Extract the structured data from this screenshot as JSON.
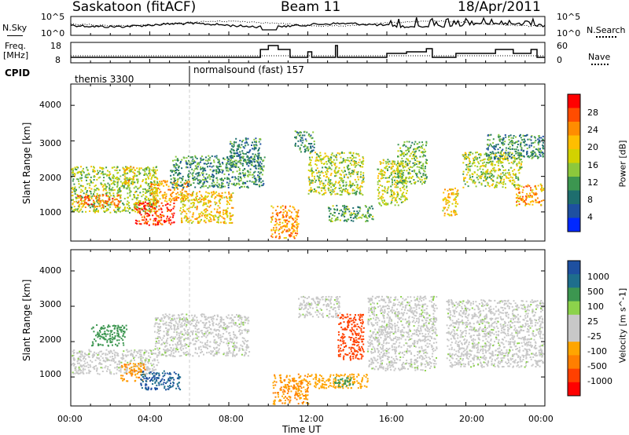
{
  "header": {
    "station": "Saskatoon (fitACF)",
    "beam": "Beam 11",
    "date": "18/Apr/2011"
  },
  "noise_panel": {
    "left_label": "N.Sky",
    "right_label": "N.Search",
    "left_ticks": [
      "10^5",
      "10^0"
    ],
    "right_ticks": [
      "10^5",
      "10^0"
    ]
  },
  "freq_panel": {
    "left_label_line1": "Freq.",
    "left_label_line2": "[MHz]",
    "right_label": "Nave",
    "left_ticks": [
      "18",
      "8"
    ],
    "right_ticks": [
      "60",
      "0"
    ]
  },
  "cpid": {
    "label": "CPID",
    "segments": [
      {
        "name": "themis 3300",
        "start_hour": 0
      },
      {
        "name": "normalsound (fast) 157",
        "start_hour": 6
      }
    ]
  },
  "chart_data": [
    {
      "type": "heatmap",
      "name": "power",
      "ylabel": "Slant Range [km]",
      "yticks": [
        "4000",
        "3000",
        "2000",
        "1000"
      ],
      "ylim": [
        180,
        4600
      ],
      "xlim": [
        0,
        24
      ],
      "colorbar_label": "Power [dB]",
      "colorbar_ticks": [
        "28",
        "24",
        "20",
        "16",
        "12",
        "8",
        "4"
      ],
      "colorbar_colors": [
        "#ff0000",
        "#ff4c00",
        "#ff8c00",
        "#ffbe00",
        "#d2d200",
        "#8cc83c",
        "#3c9650",
        "#1e6e6e",
        "#1e50a0",
        "#0028ff"
      ],
      "blobs": [
        {
          "h0": 0.0,
          "h1": 4.4,
          "r0": 1000,
          "r1": 2300,
          "v": 14
        },
        {
          "h0": 0.3,
          "h1": 2.5,
          "r0": 1150,
          "r1": 1500,
          "v": 23
        },
        {
          "h0": 2.6,
          "h1": 3.2,
          "r0": 1800,
          "r1": 2300,
          "v": 20
        },
        {
          "h0": 3.2,
          "h1": 5.2,
          "r0": 650,
          "r1": 1300,
          "v": 27
        },
        {
          "h0": 4.0,
          "h1": 6.0,
          "r0": 1300,
          "r1": 1900,
          "v": 21
        },
        {
          "h0": 5.0,
          "h1": 9.8,
          "r0": 1700,
          "r1": 2600,
          "v": 10
        },
        {
          "h0": 5.5,
          "h1": 8.2,
          "r0": 700,
          "r1": 1600,
          "v": 19
        },
        {
          "h0": 8.0,
          "h1": 9.6,
          "r0": 2300,
          "r1": 3100,
          "v": 9
        },
        {
          "h0": 10.1,
          "h1": 11.5,
          "r0": 280,
          "r1": 1200,
          "v": 22
        },
        {
          "h0": 11.3,
          "h1": 12.3,
          "r0": 2700,
          "r1": 3300,
          "v": 9
        },
        {
          "h0": 12.0,
          "h1": 14.8,
          "r0": 1500,
          "r1": 2700,
          "v": 15
        },
        {
          "h0": 13.0,
          "h1": 15.3,
          "r0": 750,
          "r1": 1200,
          "v": 11
        },
        {
          "h0": 15.5,
          "h1": 17.0,
          "r0": 1200,
          "r1": 2500,
          "v": 16
        },
        {
          "h0": 16.5,
          "h1": 18.0,
          "r0": 1800,
          "r1": 3000,
          "v": 13
        },
        {
          "h0": 18.8,
          "h1": 19.6,
          "r0": 900,
          "r1": 1700,
          "v": 19
        },
        {
          "h0": 19.8,
          "h1": 22.8,
          "r0": 1700,
          "r1": 2700,
          "v": 15
        },
        {
          "h0": 21.0,
          "h1": 23.9,
          "r0": 2500,
          "r1": 3200,
          "v": 9
        },
        {
          "h0": 22.5,
          "h1": 23.9,
          "r0": 1200,
          "r1": 1800,
          "v": 21
        }
      ]
    },
    {
      "type": "heatmap",
      "name": "velocity",
      "ylabel": "Slant Range [km]",
      "yticks": [
        "4000",
        "3000",
        "2000",
        "1000"
      ],
      "ylim": [
        180,
        4600
      ],
      "xlim": [
        0,
        24
      ],
      "colorbar_label": "Velocity [m s^-1]",
      "colorbar_ticks": [
        "1000",
        "500",
        "100",
        "25",
        "-25",
        "-100",
        "-500",
        "-1000"
      ],
      "colorbar_colors": [
        "#1e50a0",
        "#1e6e8c",
        "#3c9650",
        "#8cd24b",
        "#c8c8c8",
        "#c8c8c8",
        "#ffa500",
        "#ff7f00",
        "#ff4000",
        "#ff0000"
      ],
      "blobs": [
        {
          "h0": 0.0,
          "h1": 4.4,
          "r0": 1100,
          "r1": 1800,
          "v": 0
        },
        {
          "h0": 1.0,
          "h1": 2.8,
          "r0": 1900,
          "r1": 2500,
          "v": 150
        },
        {
          "h0": 2.5,
          "h1": 3.8,
          "r0": 900,
          "r1": 1400,
          "v": -300
        },
        {
          "h0": 3.5,
          "h1": 5.5,
          "r0": 650,
          "r1": 1200,
          "v": 700
        },
        {
          "h0": 4.2,
          "h1": 9.0,
          "r0": 1600,
          "r1": 2800,
          "v": 0
        },
        {
          "h0": 10.2,
          "h1": 12.0,
          "r0": 250,
          "r1": 1100,
          "v": -300
        },
        {
          "h0": 12.0,
          "h1": 15.0,
          "r0": 700,
          "r1": 1100,
          "v": -250
        },
        {
          "h0": 11.5,
          "h1": 13.6,
          "r0": 2700,
          "r1": 3300,
          "v": 0
        },
        {
          "h0": 13.5,
          "h1": 14.8,
          "r0": 1500,
          "r1": 2800,
          "v": -600
        },
        {
          "h0": 15.0,
          "h1": 18.5,
          "r0": 1200,
          "r1": 3300,
          "v": 0
        },
        {
          "h0": 19.0,
          "h1": 23.9,
          "r0": 1300,
          "r1": 3200,
          "v": 0
        },
        {
          "h0": 13.3,
          "h1": 14.3,
          "r0": 750,
          "r1": 1000,
          "v": 150
        }
      ]
    }
  ],
  "xaxis": {
    "label": "Time UT",
    "ticks": [
      "00:00",
      "04:00",
      "08:00",
      "12:00",
      "16:00",
      "20:00",
      "00:00"
    ]
  },
  "colors": {
    "background": "#ffffff",
    "frame": "#000000"
  }
}
